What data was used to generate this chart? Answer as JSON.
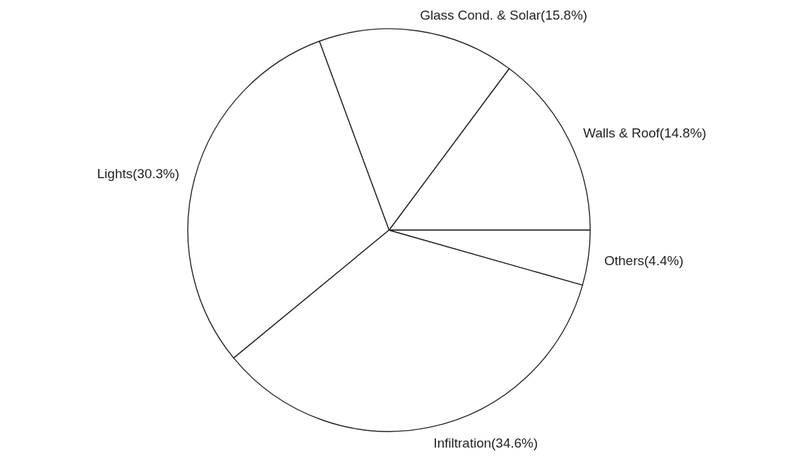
{
  "chart_data": {
    "type": "pie",
    "categories": [
      "Walls & Roof",
      "Glass Cond. & Solar",
      "Lights",
      "Infiltration",
      "Others"
    ],
    "values": [
      14.8,
      15.8,
      30.3,
      34.6,
      4.4
    ],
    "value_labels": [
      "(14.8%)",
      "(15.8%)",
      "(30.3%)",
      "(34.6%)",
      "(4.4%)"
    ],
    "colors": [
      "#ffffff",
      "#ffffff",
      "#ffffff",
      "#ffffff",
      "#ffffff"
    ]
  }
}
